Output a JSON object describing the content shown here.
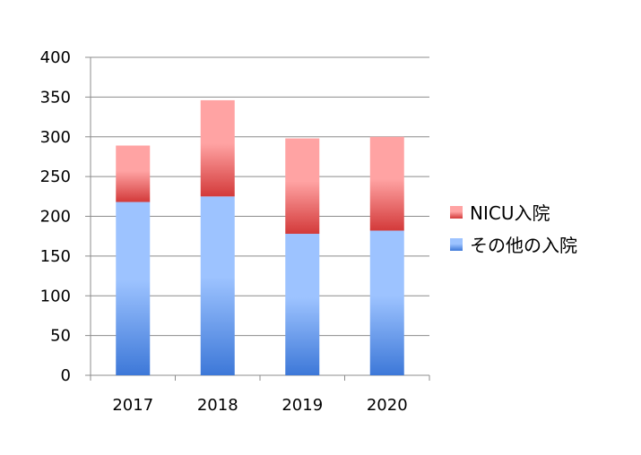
{
  "chart_data": {
    "type": "bar",
    "stacked": true,
    "categories": [
      "2017",
      "2018",
      "2019",
      "2020"
    ],
    "series": [
      {
        "name": "その他の入院",
        "values": [
          218,
          225,
          178,
          182
        ],
        "color_light": "#9DC3FF",
        "color_dark": "#3D78D8"
      },
      {
        "name": "NICU入院",
        "values": [
          71,
          121,
          120,
          118
        ],
        "color_light": "#FFA3A3",
        "color_dark": "#D33A3A"
      }
    ],
    "ylim": [
      0,
      400
    ],
    "y_ticks": [
      "0",
      "50",
      "100",
      "150",
      "200",
      "250",
      "300",
      "350",
      "400"
    ],
    "grid": true,
    "legend_position": "right"
  }
}
